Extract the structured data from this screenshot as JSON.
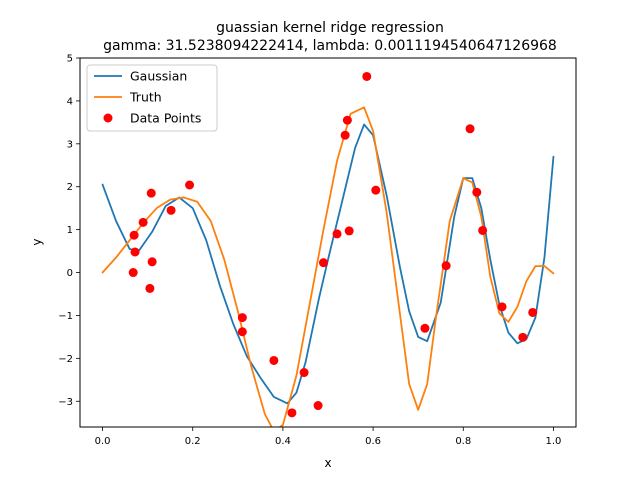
{
  "chart_data": {
    "type": "line",
    "title_line1": "guassian kernel ridge regression",
    "title_line2": "gamma: 31.5238094222414, lambda: 0.0011194540647126968",
    "xlabel": "x",
    "ylabel": "y",
    "xlim": [
      -0.05,
      1.05
    ],
    "ylim": [
      -3.6,
      5.0
    ],
    "x_ticks": [
      0.0,
      0.2,
      0.4,
      0.6,
      0.8,
      1.0
    ],
    "x_tick_labels": [
      "0.0",
      "0.2",
      "0.4",
      "0.6",
      "0.8",
      "1.0"
    ],
    "y_ticks": [
      -3,
      -2,
      -1,
      0,
      1,
      2,
      3,
      4,
      5
    ],
    "y_tick_labels": [
      "−3",
      "−2",
      "−1",
      "0",
      "1",
      "2",
      "3",
      "4",
      "5"
    ],
    "grid": false,
    "legend_position": "upper-left",
    "series": [
      {
        "name": "Gaussian",
        "kind": "line",
        "color": "#1f77b4",
        "x": [
          0.0,
          0.03,
          0.06,
          0.08,
          0.11,
          0.14,
          0.17,
          0.2,
          0.23,
          0.26,
          0.29,
          0.32,
          0.35,
          0.38,
          0.41,
          0.43,
          0.45,
          0.48,
          0.5,
          0.53,
          0.56,
          0.58,
          0.6,
          0.63,
          0.66,
          0.68,
          0.7,
          0.72,
          0.75,
          0.78,
          0.8,
          0.82,
          0.84,
          0.86,
          0.88,
          0.9,
          0.92,
          0.94,
          0.96,
          0.98,
          1.0
        ],
        "y": [
          2.05,
          1.2,
          0.55,
          0.5,
          0.95,
          1.55,
          1.75,
          1.5,
          0.75,
          -0.3,
          -1.2,
          -1.95,
          -2.45,
          -2.9,
          -3.05,
          -2.8,
          -2.1,
          -0.6,
          0.3,
          1.6,
          2.9,
          3.45,
          3.2,
          1.8,
          0.1,
          -0.9,
          -1.5,
          -1.6,
          -0.7,
          1.3,
          2.2,
          2.2,
          1.5,
          0.3,
          -0.75,
          -1.4,
          -1.65,
          -1.55,
          -1.05,
          0.35,
          2.7
        ]
      },
      {
        "name": "Truth",
        "kind": "line",
        "color": "#ff7f0e",
        "x": [
          0.0,
          0.03,
          0.06,
          0.09,
          0.12,
          0.15,
          0.18,
          0.21,
          0.24,
          0.27,
          0.3,
          0.33,
          0.36,
          0.38,
          0.4,
          0.43,
          0.46,
          0.49,
          0.52,
          0.55,
          0.58,
          0.6,
          0.63,
          0.66,
          0.68,
          0.7,
          0.72,
          0.74,
          0.77,
          0.8,
          0.82,
          0.84,
          0.86,
          0.88,
          0.9,
          0.92,
          0.94,
          0.96,
          0.98,
          1.0
        ],
        "y": [
          0.0,
          0.35,
          0.75,
          1.15,
          1.5,
          1.7,
          1.75,
          1.65,
          1.2,
          0.3,
          -0.9,
          -2.2,
          -3.3,
          -3.7,
          -3.55,
          -2.4,
          -0.7,
          1.0,
          2.6,
          3.7,
          3.85,
          3.3,
          1.4,
          -1.0,
          -2.6,
          -3.2,
          -2.6,
          -1.0,
          1.2,
          2.2,
          2.1,
          1.3,
          -0.1,
          -0.95,
          -1.15,
          -0.8,
          -0.2,
          0.15,
          0.15,
          -0.02
        ]
      },
      {
        "name": "Data Points",
        "kind": "scatter",
        "color": "#ff0000",
        "x": [
          0.068,
          0.07,
          0.072,
          0.09,
          0.105,
          0.108,
          0.11,
          0.152,
          0.193,
          0.31,
          0.31,
          0.38,
          0.42,
          0.447,
          0.478,
          0.49,
          0.52,
          0.538,
          0.543,
          0.547,
          0.586,
          0.606,
          0.715,
          0.762,
          0.815,
          0.83,
          0.843,
          0.886,
          0.932,
          0.954
        ],
        "y": [
          0.0,
          0.87,
          0.48,
          1.17,
          -0.37,
          1.85,
          0.25,
          1.45,
          2.04,
          -1.05,
          -1.38,
          -2.05,
          -3.27,
          -2.33,
          -3.1,
          0.23,
          0.9,
          3.2,
          3.55,
          0.97,
          4.57,
          1.92,
          -1.3,
          0.16,
          3.35,
          1.87,
          0.98,
          -0.8,
          -1.51,
          -0.93
        ]
      }
    ]
  }
}
